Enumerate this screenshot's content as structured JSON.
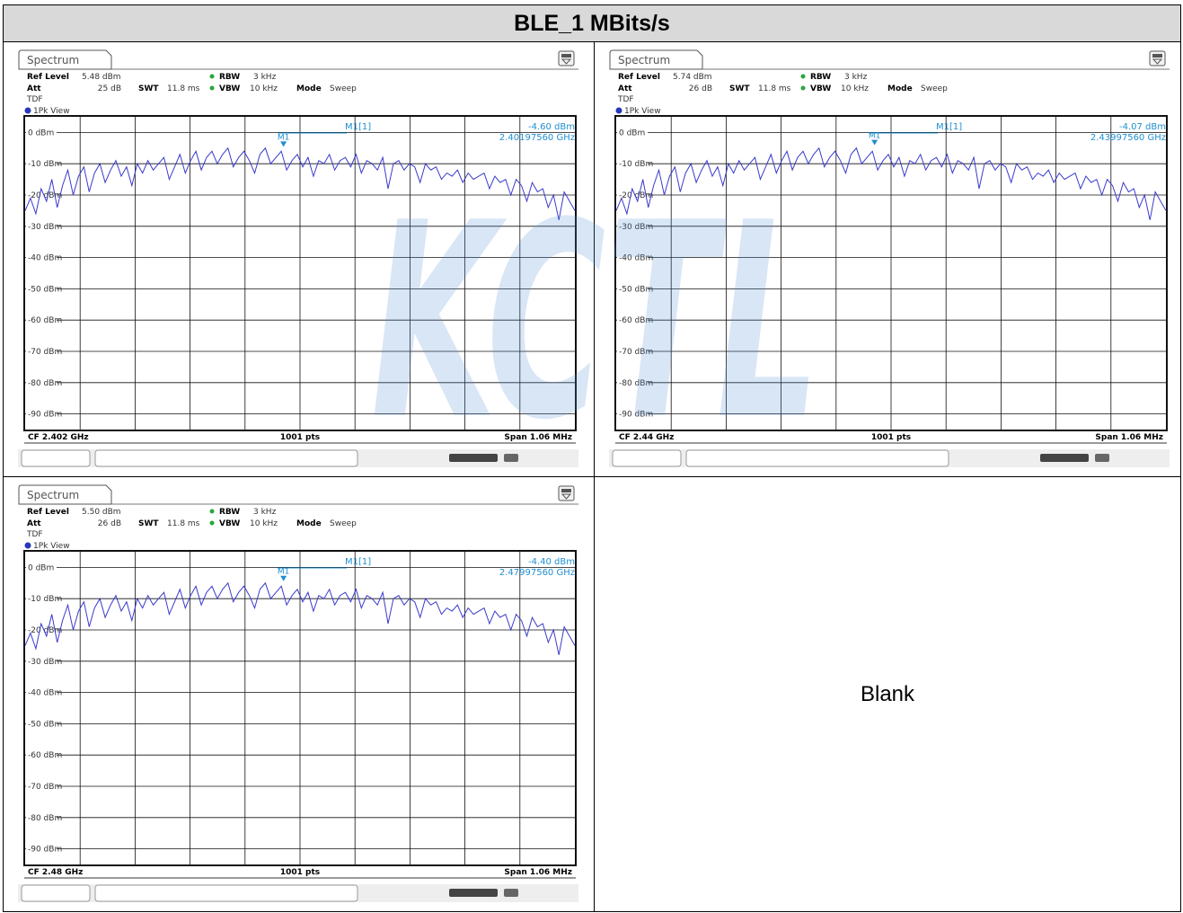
{
  "title": "BLE_1 MBits/s",
  "blank_label": "Blank",
  "watermark_text": "KCTL",
  "colors": {
    "trace": "#3a3acc",
    "marker": "#1f8fd0",
    "grid": "#000000",
    "header_bg": "#d9d9d9",
    "watermark": "#4f8fd6"
  },
  "chart_data": [
    {
      "type": "line",
      "tab_label": "Spectrum",
      "ref_level_label": "Ref Level",
      "ref_level": "5.48 dBm",
      "att_label": "Att",
      "att": "25 dB",
      "swt_label": "SWT",
      "swt": "11.8 ms",
      "rbw_label": "RBW",
      "rbw": "3 kHz",
      "vbw_label": "VBW",
      "vbw": "10 kHz",
      "mode_label": "Mode",
      "mode": "Sweep",
      "tdf": "TDF",
      "view_label": "1Pk View",
      "marker_name": "M1[1]",
      "marker_tag": "M1",
      "marker_level": "-4.60 dBm",
      "marker_freq": "2.40197560 GHz",
      "marker_level_db": -4.6,
      "marker_x_frac": 0.47,
      "ylim": [
        -95,
        5
      ],
      "y_ticks": [
        0,
        -10,
        -20,
        -30,
        -40,
        -50,
        -60,
        -70,
        -80,
        -90
      ],
      "y_tick_labels": [
        "0 dBm",
        "-10 dBm",
        "-20 dBm",
        "-30 dBm",
        "-40 dBm",
        "-50 dBm",
        "-60 dBm",
        "-70 dBm",
        "-80 dBm",
        "-90 dBm"
      ],
      "cf": "CF 2.402 GHz",
      "pts": "1001 pts",
      "span": "Span 1.06 MHz",
      "trace_db": [
        -25,
        -21,
        -26,
        -18,
        -22,
        -15,
        -24,
        -17,
        -12,
        -20,
        -14,
        -11,
        -19,
        -13,
        -10,
        -16,
        -12,
        -9,
        -14,
        -11,
        -17,
        -10,
        -13,
        -9,
        -12,
        -10,
        -8,
        -15,
        -11,
        -7,
        -13,
        -9,
        -6,
        -12,
        -8,
        -6,
        -10,
        -7,
        -5,
        -11,
        -8,
        -6,
        -9,
        -13,
        -7,
        -5,
        -10,
        -8,
        -6,
        -12,
        -9,
        -7,
        -11,
        -8,
        -14,
        -9,
        -10,
        -7,
        -12,
        -9,
        -8,
        -11,
        -7,
        -13,
        -9,
        -10,
        -12,
        -8,
        -18,
        -10,
        -9,
        -12,
        -10,
        -11,
        -16,
        -10,
        -12,
        -11,
        -15,
        -13,
        -14,
        -12,
        -16,
        -13,
        -15,
        -14,
        -13,
        -18,
        -14,
        -16,
        -15,
        -20,
        -15,
        -17,
        -22,
        -16,
        -19,
        -18,
        -24,
        -20,
        -28,
        -19,
        -22,
        -25
      ]
    },
    {
      "type": "line",
      "tab_label": "Spectrum",
      "ref_level_label": "Ref Level",
      "ref_level": "5.74 dBm",
      "att_label": "Att",
      "att": "26 dB",
      "swt_label": "SWT",
      "swt": "11.8 ms",
      "rbw_label": "RBW",
      "rbw": "3 kHz",
      "vbw_label": "VBW",
      "vbw": "10 kHz",
      "mode_label": "Mode",
      "mode": "Sweep",
      "tdf": "TDF",
      "view_label": "1Pk View",
      "marker_name": "M1[1]",
      "marker_tag": "M1",
      "marker_level": "-4.07 dBm",
      "marker_freq": "2.43997560 GHz",
      "marker_level_db": -4.07,
      "marker_x_frac": 0.47,
      "ylim": [
        -95,
        5
      ],
      "y_ticks": [
        0,
        -10,
        -20,
        -30,
        -40,
        -50,
        -60,
        -70,
        -80,
        -90
      ],
      "y_tick_labels": [
        "0 dBm",
        "-10 dBm",
        "-20 dBm",
        "-30 dBm",
        "-40 dBm",
        "-50 dBm",
        "-60 dBm",
        "-70 dBm",
        "-80 dBm",
        "-90 dBm"
      ],
      "cf": "CF 2.44 GHz",
      "pts": "1001 pts",
      "span": "Span 1.06 MHz",
      "trace_db": [
        -25,
        -21,
        -26,
        -18,
        -22,
        -15,
        -24,
        -17,
        -12,
        -20,
        -14,
        -11,
        -19,
        -13,
        -10,
        -16,
        -12,
        -9,
        -14,
        -11,
        -17,
        -10,
        -13,
        -9,
        -12,
        -10,
        -8,
        -15,
        -11,
        -7,
        -13,
        -9,
        -6,
        -12,
        -8,
        -6,
        -10,
        -7,
        -5,
        -11,
        -8,
        -6,
        -9,
        -13,
        -7,
        -5,
        -10,
        -8,
        -6,
        -12,
        -9,
        -7,
        -11,
        -8,
        -14,
        -9,
        -10,
        -7,
        -12,
        -9,
        -8,
        -11,
        -7,
        -13,
        -9,
        -10,
        -12,
        -8,
        -18,
        -10,
        -9,
        -12,
        -10,
        -11,
        -16,
        -10,
        -12,
        -11,
        -15,
        -13,
        -14,
        -12,
        -16,
        -13,
        -15,
        -14,
        -13,
        -18,
        -14,
        -16,
        -15,
        -20,
        -15,
        -17,
        -22,
        -16,
        -19,
        -18,
        -24,
        -20,
        -28,
        -19,
        -22,
        -25
      ]
    },
    {
      "type": "line",
      "tab_label": "Spectrum",
      "ref_level_label": "Ref Level",
      "ref_level": "5.50 dBm",
      "att_label": "Att",
      "att": "26 dB",
      "swt_label": "SWT",
      "swt": "11.8 ms",
      "rbw_label": "RBW",
      "rbw": "3 kHz",
      "vbw_label": "VBW",
      "vbw": "10 kHz",
      "mode_label": "Mode",
      "mode": "Sweep",
      "tdf": "TDF",
      "view_label": "1Pk View",
      "marker_name": "M1[1]",
      "marker_tag": "M1",
      "marker_level": "-4.40 dBm",
      "marker_freq": "2.47997560 GHz",
      "marker_level_db": -4.4,
      "marker_x_frac": 0.47,
      "ylim": [
        -95,
        5
      ],
      "y_ticks": [
        0,
        -10,
        -20,
        -30,
        -40,
        -50,
        -60,
        -70,
        -80,
        -90
      ],
      "y_tick_labels": [
        "0 dBm",
        "-10 dBm",
        "-20 dBm",
        "-30 dBm",
        "-40 dBm",
        "-50 dBm",
        "-60 dBm",
        "-70 dBm",
        "-80 dBm",
        "-90 dBm"
      ],
      "cf": "CF 2.48 GHz",
      "pts": "1001 pts",
      "span": "Span 1.06 MHz",
      "trace_db": [
        -25,
        -21,
        -26,
        -18,
        -22,
        -15,
        -24,
        -17,
        -12,
        -20,
        -14,
        -11,
        -19,
        -13,
        -10,
        -16,
        -12,
        -9,
        -14,
        -11,
        -17,
        -10,
        -13,
        -9,
        -12,
        -10,
        -8,
        -15,
        -11,
        -7,
        -13,
        -9,
        -6,
        -12,
        -8,
        -6,
        -10,
        -7,
        -5,
        -11,
        -8,
        -6,
        -9,
        -13,
        -7,
        -5,
        -10,
        -8,
        -6,
        -12,
        -9,
        -7,
        -11,
        -8,
        -14,
        -9,
        -10,
        -7,
        -12,
        -9,
        -8,
        -11,
        -7,
        -13,
        -9,
        -10,
        -12,
        -8,
        -18,
        -10,
        -9,
        -12,
        -10,
        -11,
        -16,
        -10,
        -12,
        -11,
        -15,
        -13,
        -14,
        -12,
        -16,
        -13,
        -15,
        -14,
        -13,
        -18,
        -14,
        -16,
        -15,
        -20,
        -15,
        -17,
        -22,
        -16,
        -19,
        -18,
        -24,
        -20,
        -28,
        -19,
        -22,
        -25
      ]
    }
  ]
}
